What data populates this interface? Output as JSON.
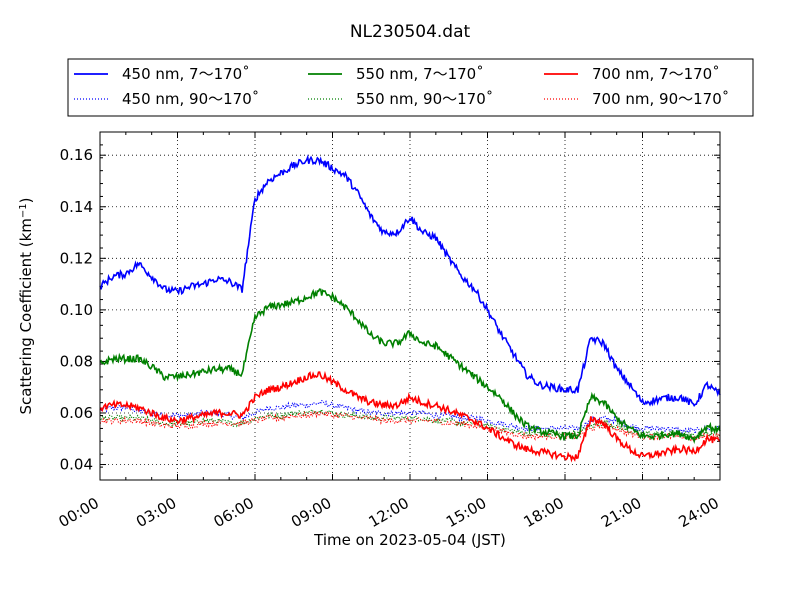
{
  "chart_data": {
    "type": "line",
    "title": "NL230504.dat",
    "xlabel": "Time on 2023-05-04 (JST)",
    "ylabel": "Scattering Coefficient (km",
    "ylabel_superscript": "−1",
    "ylabel_suffix": ")",
    "xlim": [
      "00:00",
      "24:00"
    ],
    "ylim": [
      0.034,
      0.169
    ],
    "grid": true,
    "legend_position": "top",
    "x_ticks": [
      "00:00",
      "03:00",
      "06:00",
      "09:00",
      "12:00",
      "15:00",
      "18:00",
      "21:00",
      "24:00"
    ],
    "y_ticks": [
      "0.04",
      "0.06",
      "0.08",
      "0.10",
      "0.12",
      "0.14",
      "0.16"
    ],
    "x": [
      "00:00",
      "00:30",
      "01:00",
      "01:30",
      "02:00",
      "02:30",
      "03:00",
      "03:30",
      "04:00",
      "04:30",
      "05:00",
      "05:30",
      "06:00",
      "06:30",
      "07:00",
      "07:30",
      "08:00",
      "08:30",
      "09:00",
      "09:30",
      "10:00",
      "10:30",
      "11:00",
      "11:30",
      "12:00",
      "12:30",
      "13:00",
      "13:30",
      "14:00",
      "14:30",
      "15:00",
      "15:30",
      "16:00",
      "16:30",
      "17:00",
      "17:30",
      "18:00",
      "18:30",
      "19:00",
      "19:30",
      "20:00",
      "20:30",
      "21:00",
      "21:30",
      "22:00",
      "22:30",
      "23:00",
      "23:30",
      "24:00"
    ],
    "series": [
      {
        "name": "450 nm, 7～170˚",
        "color": "#0000ff",
        "style": "solid",
        "values": [
          0.109,
          0.113,
          0.114,
          0.118,
          0.113,
          0.108,
          0.107,
          0.109,
          0.11,
          0.112,
          0.111,
          0.108,
          0.143,
          0.15,
          0.153,
          0.156,
          0.158,
          0.158,
          0.155,
          0.152,
          0.145,
          0.136,
          0.13,
          0.13,
          0.136,
          0.13,
          0.128,
          0.12,
          0.113,
          0.108,
          0.1,
          0.091,
          0.083,
          0.075,
          0.071,
          0.07,
          0.069,
          0.069,
          0.089,
          0.087,
          0.077,
          0.071,
          0.064,
          0.065,
          0.066,
          0.066,
          0.063,
          0.071,
          0.067
        ]
      },
      {
        "name": "450 nm, 90～170˚",
        "color": "#0000ff",
        "style": "dotted",
        "values": [
          0.061,
          0.062,
          0.062,
          0.061,
          0.06,
          0.059,
          0.059,
          0.059,
          0.06,
          0.06,
          0.059,
          0.058,
          0.06,
          0.062,
          0.062,
          0.063,
          0.063,
          0.064,
          0.063,
          0.062,
          0.061,
          0.06,
          0.06,
          0.06,
          0.06,
          0.06,
          0.059,
          0.059,
          0.058,
          0.058,
          0.057,
          0.056,
          0.055,
          0.054,
          0.054,
          0.054,
          0.054,
          0.054,
          0.057,
          0.058,
          0.057,
          0.055,
          0.054,
          0.054,
          0.054,
          0.053,
          0.053,
          0.054,
          0.054
        ]
      },
      {
        "name": "550 nm, 7～170˚",
        "color": "#008000",
        "style": "solid",
        "values": [
          0.079,
          0.081,
          0.081,
          0.081,
          0.078,
          0.074,
          0.074,
          0.075,
          0.076,
          0.077,
          0.077,
          0.075,
          0.097,
          0.101,
          0.102,
          0.103,
          0.105,
          0.107,
          0.105,
          0.101,
          0.096,
          0.09,
          0.087,
          0.087,
          0.091,
          0.087,
          0.086,
          0.082,
          0.078,
          0.074,
          0.07,
          0.066,
          0.06,
          0.055,
          0.053,
          0.052,
          0.051,
          0.051,
          0.066,
          0.064,
          0.058,
          0.054,
          0.051,
          0.051,
          0.052,
          0.052,
          0.05,
          0.055,
          0.053
        ]
      },
      {
        "name": "550 nm, 90～170˚",
        "color": "#008000",
        "style": "dotted",
        "values": [
          0.058,
          0.058,
          0.058,
          0.058,
          0.057,
          0.056,
          0.056,
          0.056,
          0.057,
          0.057,
          0.056,
          0.056,
          0.058,
          0.059,
          0.059,
          0.06,
          0.06,
          0.061,
          0.06,
          0.059,
          0.059,
          0.058,
          0.058,
          0.058,
          0.058,
          0.058,
          0.057,
          0.057,
          0.056,
          0.056,
          0.055,
          0.054,
          0.053,
          0.052,
          0.052,
          0.052,
          0.052,
          0.052,
          0.055,
          0.056,
          0.055,
          0.053,
          0.052,
          0.052,
          0.052,
          0.052,
          0.051,
          0.052,
          0.052
        ]
      },
      {
        "name": "700 nm, 7～170˚",
        "color": "#ff0000",
        "style": "solid",
        "values": [
          0.062,
          0.063,
          0.063,
          0.062,
          0.06,
          0.058,
          0.057,
          0.058,
          0.059,
          0.06,
          0.06,
          0.059,
          0.066,
          0.069,
          0.07,
          0.072,
          0.074,
          0.075,
          0.072,
          0.069,
          0.066,
          0.064,
          0.063,
          0.063,
          0.066,
          0.064,
          0.063,
          0.061,
          0.059,
          0.057,
          0.054,
          0.051,
          0.048,
          0.046,
          0.045,
          0.044,
          0.043,
          0.043,
          0.058,
          0.056,
          0.05,
          0.046,
          0.043,
          0.044,
          0.045,
          0.046,
          0.045,
          0.05,
          0.049
        ]
      },
      {
        "name": "700 nm, 90～170˚",
        "color": "#ff0000",
        "style": "dotted",
        "values": [
          0.057,
          0.057,
          0.057,
          0.057,
          0.056,
          0.055,
          0.055,
          0.055,
          0.056,
          0.056,
          0.056,
          0.056,
          0.057,
          0.058,
          0.058,
          0.059,
          0.059,
          0.06,
          0.059,
          0.059,
          0.058,
          0.058,
          0.057,
          0.057,
          0.057,
          0.057,
          0.057,
          0.056,
          0.056,
          0.055,
          0.054,
          0.053,
          0.052,
          0.051,
          0.051,
          0.051,
          0.051,
          0.051,
          0.054,
          0.055,
          0.054,
          0.052,
          0.051,
          0.051,
          0.051,
          0.051,
          0.05,
          0.051,
          0.051
        ]
      }
    ]
  }
}
